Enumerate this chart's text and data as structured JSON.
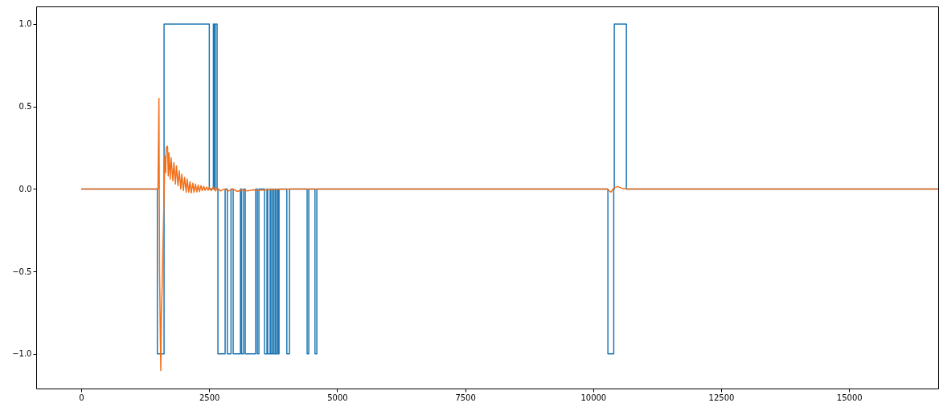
{
  "chart_data": {
    "type": "line",
    "xlim": [
      -880,
      16740
    ],
    "ylim": [
      -1.21,
      1.107
    ],
    "xticks": [
      0,
      2500,
      5000,
      7500,
      10000,
      12500,
      15000
    ],
    "yticks": [
      {
        "value": -1,
        "label": "−1.0"
      },
      {
        "value": -0.5,
        "label": "−0.5"
      },
      {
        "value": 0,
        "label": "0.0"
      },
      {
        "value": 0.5,
        "label": "0.5"
      },
      {
        "value": 1,
        "label": "1.0"
      }
    ],
    "grid": false,
    "series": [
      {
        "type": "step",
        "color": "#1f77b4",
        "x": [
          0,
          1487,
          1618,
          2502,
          2581,
          2602,
          2618,
          2654,
          2670,
          2811,
          2854,
          2926,
          2968,
          3110,
          3133,
          3173,
          3204,
          3408,
          3440,
          3471,
          3581,
          3628,
          3644,
          3690,
          3706,
          3738,
          3754,
          3785,
          3801,
          3832,
          3848,
          3864,
          4016,
          4068,
          4413,
          4445,
          4566,
          4602,
          10288,
          10402,
          10413,
          10649,
          16740
        ],
        "values": [
          0,
          -1,
          1,
          0,
          1,
          0,
          1,
          0,
          -1,
          0,
          -1,
          0,
          -1,
          0,
          -1,
          0,
          -1,
          0,
          -1,
          0,
          -1,
          0,
          -1,
          0,
          -1,
          0,
          -1,
          0,
          -1,
          0,
          -1,
          0,
          -1,
          0,
          -1,
          0,
          -1,
          0,
          -1,
          0,
          1,
          0,
          0
        ]
      },
      {
        "color": "#f1701a",
        "x": [
          0,
          1480,
          1500,
          1518,
          1530,
          1545,
          1555,
          1565,
          1580,
          1600,
          1615,
          1633,
          1650,
          1660,
          1686,
          1700,
          1712,
          1738,
          1755,
          1790,
          1810,
          1840,
          1860,
          1890,
          1915,
          1945,
          1965,
          1995,
          2020,
          2050,
          2070,
          2100,
          2125,
          2150,
          2180,
          2205,
          2230,
          2260,
          2285,
          2310,
          2340,
          2365,
          2395,
          2420,
          2450,
          2480,
          2500,
          2540,
          2580,
          2620,
          2660,
          2720,
          2800,
          2880,
          2960,
          3050,
          3150,
          3250,
          3350,
          3500,
          3700,
          4000,
          10280,
          10345,
          10400,
          10476,
          10560,
          10665,
          16740
        ],
        "values": [
          0,
          0,
          0,
          0.55,
          -0.5,
          -0.9,
          -1.1,
          -0.75,
          -0.6,
          -0.3,
          -0.1,
          0.2,
          0.1,
          0.25,
          0.26,
          0.08,
          0.22,
          0.06,
          0.19,
          0.05,
          0.16,
          0.03,
          0.14,
          0.02,
          0.11,
          0,
          0.09,
          -0.01,
          0.07,
          -0.02,
          0.06,
          -0.02,
          0.045,
          -0.024,
          0.035,
          -0.02,
          0.03,
          -0.018,
          0.024,
          -0.016,
          0.02,
          -0.01,
          0.016,
          -0.008,
          0.012,
          -0.008,
          0.01,
          -0.01,
          0.012,
          -0.012,
          0.005,
          -0.012,
          0,
          -0.012,
          0,
          -0.015,
          -0.005,
          -0.012,
          -0.005,
          -0.008,
          -0.004,
          0,
          0,
          -0.02,
          0.005,
          0.015,
          0.005,
          0,
          0
        ]
      }
    ]
  }
}
